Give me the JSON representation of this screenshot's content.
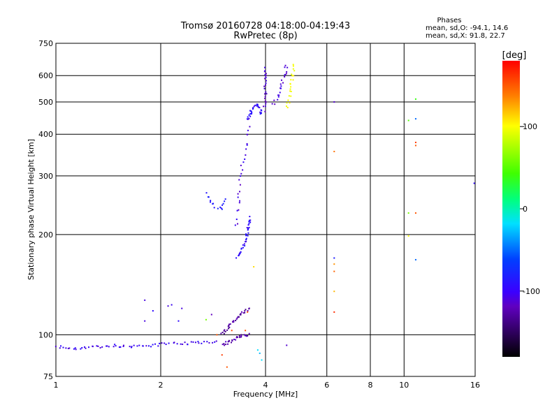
{
  "chart_data": {
    "type": "scatter",
    "title": "Tromsø 20160728 04:18:00-04:19:43",
    "subtitle": "RwPretec (8p)",
    "xlabel": "Frequency [MHz]",
    "ylabel": "Stationary phase Virtual Height [km]",
    "x_scale": "log",
    "y_scale": "log",
    "xlim": [
      1,
      16
    ],
    "ylim": [
      75,
      750
    ],
    "x_ticks": [
      {
        "value": 1,
        "label": "1"
      },
      {
        "value": 2,
        "label": "2"
      },
      {
        "value": 4,
        "label": "4"
      },
      {
        "value": 6,
        "label": "6"
      },
      {
        "value": 8,
        "label": "8"
      },
      {
        "value": 10,
        "label": "10"
      },
      {
        "value": 16,
        "label": "16"
      }
    ],
    "y_ticks": [
      {
        "value": 75,
        "label": "75"
      },
      {
        "value": 100,
        "label": "100"
      },
      {
        "value": 200,
        "label": "200"
      },
      {
        "value": 300,
        "label": "300"
      },
      {
        "value": 400,
        "label": "400"
      },
      {
        "value": 500,
        "label": "500"
      },
      {
        "value": 600,
        "label": "600"
      },
      {
        "value": 750,
        "label": "750"
      }
    ],
    "grid": true,
    "legend": {
      "title": "Phases",
      "line1": "mean, sd,O: -94.1, 14.6",
      "line2": "mean, sd,X:  91.8, 22.7",
      "placement": "top-right"
    },
    "colorbar": {
      "label": "[deg]",
      "range": [
        -180,
        180
      ],
      "ticks": [
        {
          "value": 100,
          "label": "100"
        },
        {
          "value": 0,
          "label": "0"
        },
        {
          "value": -100,
          "label": "-100"
        }
      ]
    },
    "trace_segments": [
      {
        "phase": -105,
        "count": 70,
        "seed": 11,
        "pts": [
          [
            1.0,
            92
          ],
          [
            1.15,
            91
          ],
          [
            1.3,
            92
          ],
          [
            1.45,
            93
          ],
          [
            1.6,
            92
          ],
          [
            1.75,
            93
          ],
          [
            1.9,
            93
          ],
          [
            2.1,
            94
          ],
          [
            2.3,
            94
          ],
          [
            2.5,
            95
          ],
          [
            2.7,
            95
          ],
          [
            2.9,
            96
          ]
        ]
      },
      {
        "phase": -100,
        "count": 36,
        "seed": 23,
        "pts": [
          [
            3.3,
            170
          ],
          [
            3.4,
            178
          ],
          [
            3.5,
            188
          ],
          [
            3.55,
            205
          ],
          [
            3.6,
            225
          ]
        ]
      },
      {
        "phase": -110,
        "count": 26,
        "seed": 31,
        "pts": [
          [
            3.3,
            210
          ],
          [
            3.35,
            260
          ],
          [
            3.4,
            310
          ],
          [
            3.5,
            360
          ],
          [
            3.55,
            400
          ],
          [
            3.6,
            430
          ]
        ]
      },
      {
        "phase": -100,
        "count": 30,
        "seed": 37,
        "pts": [
          [
            3.55,
            440
          ],
          [
            3.65,
            470
          ],
          [
            3.75,
            490
          ],
          [
            3.85,
            480
          ],
          [
            3.9,
            460
          ]
        ]
      },
      {
        "phase": -115,
        "count": 24,
        "seed": 41,
        "pts": [
          [
            3.95,
            470
          ],
          [
            4.0,
            520
          ],
          [
            4.0,
            580
          ],
          [
            4.0,
            640
          ]
        ]
      },
      {
        "phase": -110,
        "count": 22,
        "seed": 43,
        "pts": [
          [
            4.2,
            490
          ],
          [
            4.35,
            520
          ],
          [
            4.45,
            560
          ],
          [
            4.55,
            610
          ],
          [
            4.6,
            650
          ]
        ]
      },
      {
        "phase": -90,
        "count": 16,
        "seed": 47,
        "pts": [
          [
            2.7,
            265
          ],
          [
            2.8,
            250
          ],
          [
            2.9,
            240
          ],
          [
            3.0,
            240
          ],
          [
            3.1,
            255
          ]
        ]
      },
      {
        "phase": -130,
        "count": 34,
        "seed": 53,
        "pts": [
          [
            3.0,
            100
          ],
          [
            3.2,
            108
          ],
          [
            3.4,
            115
          ],
          [
            3.6,
            120
          ]
        ]
      },
      {
        "phase": -125,
        "count": 28,
        "seed": 59,
        "pts": [
          [
            3.0,
            93
          ],
          [
            3.2,
            96
          ],
          [
            3.4,
            99
          ],
          [
            3.6,
            100
          ]
        ]
      },
      {
        "phase": 95,
        "count": 22,
        "seed": 61,
        "pts": [
          [
            4.6,
            480
          ],
          [
            4.7,
            520
          ],
          [
            4.75,
            570
          ],
          [
            4.8,
            620
          ],
          [
            4.85,
            650
          ]
        ]
      }
    ],
    "points": [
      {
        "x": 1.8,
        "y": 127,
        "phase": -110
      },
      {
        "x": 1.8,
        "y": 110,
        "phase": -110
      },
      {
        "x": 1.9,
        "y": 118,
        "phase": -100
      },
      {
        "x": 2.1,
        "y": 122,
        "phase": -110
      },
      {
        "x": 2.15,
        "y": 123,
        "phase": -105
      },
      {
        "x": 2.3,
        "y": 120,
        "phase": -110
      },
      {
        "x": 2.25,
        "y": 110,
        "phase": -100
      },
      {
        "x": 2.8,
        "y": 115,
        "phase": -120
      },
      {
        "x": 2.7,
        "y": 111,
        "phase": 60
      },
      {
        "x": 2.9,
        "y": 100,
        "phase": 150
      },
      {
        "x": 3.0,
        "y": 87,
        "phase": 160
      },
      {
        "x": 3.1,
        "y": 80,
        "phase": 150
      },
      {
        "x": 3.2,
        "y": 103,
        "phase": 155
      },
      {
        "x": 3.5,
        "y": 103,
        "phase": 150
      },
      {
        "x": 3.55,
        "y": 117,
        "phase": 150
      },
      {
        "x": 3.7,
        "y": 160,
        "phase": 110
      },
      {
        "x": 3.8,
        "y": 90,
        "phase": -20
      },
      {
        "x": 3.85,
        "y": 88,
        "phase": -30
      },
      {
        "x": 3.9,
        "y": 84,
        "phase": -20
      },
      {
        "x": 4.6,
        "y": 93,
        "phase": -115
      },
      {
        "x": 6.3,
        "y": 500,
        "phase": -115
      },
      {
        "x": 6.3,
        "y": 355,
        "phase": 140
      },
      {
        "x": 6.3,
        "y": 170,
        "phase": -85
      },
      {
        "x": 6.3,
        "y": 163,
        "phase": 130
      },
      {
        "x": 6.3,
        "y": 155,
        "phase": 145
      },
      {
        "x": 6.3,
        "y": 135,
        "phase": 120
      },
      {
        "x": 6.3,
        "y": 117,
        "phase": 165
      },
      {
        "x": 10.3,
        "y": 440,
        "phase": 50
      },
      {
        "x": 10.3,
        "y": 232,
        "phase": 60
      },
      {
        "x": 10.3,
        "y": 198,
        "phase": 100
      },
      {
        "x": 10.8,
        "y": 510,
        "phase": 40
      },
      {
        "x": 10.8,
        "y": 445,
        "phase": -50
      },
      {
        "x": 10.8,
        "y": 378,
        "phase": 160
      },
      {
        "x": 10.8,
        "y": 370,
        "phase": 150
      },
      {
        "x": 10.8,
        "y": 232,
        "phase": 150
      },
      {
        "x": 10.8,
        "y": 168,
        "phase": -50
      },
      {
        "x": 15.9,
        "y": 285,
        "phase": -100
      }
    ]
  }
}
